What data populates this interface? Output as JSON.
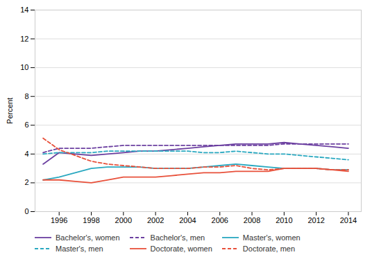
{
  "chart_data": {
    "type": "line",
    "x": [
      1995,
      1996,
      1997,
      1998,
      1999,
      2000,
      2001,
      2002,
      2003,
      2004,
      2005,
      2006,
      2007,
      2008,
      2009,
      2010,
      2011,
      2012,
      2013,
      2014
    ],
    "series": [
      {
        "name": "Bachelor's, women",
        "color": "#6B3FA0",
        "line_style": "solid",
        "values": [
          3.3,
          4.1,
          4.0,
          3.9,
          4.0,
          4.1,
          4.2,
          4.2,
          4.3,
          4.4,
          4.5,
          4.6,
          4.7,
          4.7,
          4.7,
          4.8,
          4.7,
          4.6,
          4.5,
          4.4
        ]
      },
      {
        "name": "Bachelor's, men",
        "color": "#6B3FA0",
        "line_style": "dashed",
        "values": [
          4.1,
          4.4,
          4.4,
          4.4,
          4.5,
          4.6,
          4.6,
          4.6,
          4.6,
          4.6,
          4.6,
          4.6,
          4.6,
          4.6,
          4.6,
          4.7,
          4.7,
          4.7,
          4.7,
          4.7
        ]
      },
      {
        "name": "Master's, women",
        "color": "#29A8C0",
        "line_style": "solid",
        "values": [
          2.2,
          2.4,
          2.7,
          3.0,
          3.1,
          3.1,
          3.1,
          3.0,
          3.0,
          3.0,
          3.1,
          3.2,
          3.3,
          3.2,
          3.1,
          3.0,
          3.0,
          3.0,
          2.9,
          2.9
        ]
      },
      {
        "name": "Master's, men",
        "color": "#29A8C0",
        "line_style": "dashed",
        "values": [
          4.0,
          4.1,
          4.1,
          4.1,
          4.2,
          4.2,
          4.2,
          4.2,
          4.2,
          4.2,
          4.1,
          4.1,
          4.2,
          4.1,
          4.0,
          4.0,
          3.9,
          3.8,
          3.7,
          3.6
        ]
      },
      {
        "name": "Doctorate, women",
        "color": "#E8503A",
        "line_style": "solid",
        "values": [
          2.2,
          2.2,
          2.1,
          2.0,
          2.2,
          2.4,
          2.4,
          2.4,
          2.5,
          2.6,
          2.7,
          2.7,
          2.8,
          2.8,
          2.8,
          3.0,
          3.0,
          3.0,
          2.9,
          2.8
        ]
      },
      {
        "name": "Doctorate, men",
        "color": "#E8503A",
        "line_style": "dashed",
        "values": [
          5.1,
          4.3,
          3.9,
          3.5,
          3.3,
          3.2,
          3.1,
          3.0,
          3.0,
          3.0,
          3.1,
          3.1,
          3.2,
          3.0,
          2.9,
          3.0,
          3.0,
          3.0,
          2.9,
          2.9
        ]
      }
    ],
    "ylabel": "Percent",
    "ylim": [
      0,
      14
    ],
    "yticks": [
      0,
      2,
      4,
      6,
      8,
      10,
      12,
      14
    ],
    "xlim": [
      1994.5,
      2014.8
    ],
    "xticks": [
      1996,
      1998,
      2000,
      2002,
      2004,
      2006,
      2008,
      2010,
      2012,
      2014
    ],
    "grid": true,
    "legend": "bottom"
  }
}
